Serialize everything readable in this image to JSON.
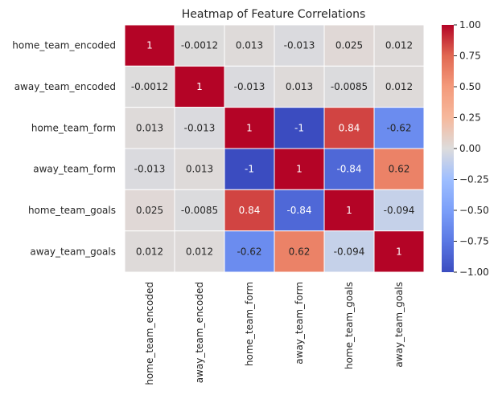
{
  "chart_data": {
    "type": "heatmap",
    "title": "Heatmap of Feature Correlations",
    "row_labels": [
      "home_team_encoded",
      "away_team_encoded",
      "home_team_form",
      "away_team_form",
      "home_team_goals",
      "away_team_goals"
    ],
    "col_labels": [
      "home_team_encoded",
      "away_team_encoded",
      "home_team_form",
      "away_team_form",
      "home_team_goals",
      "away_team_goals"
    ],
    "values": [
      [
        1,
        -0.0012,
        0.013,
        -0.013,
        0.025,
        0.012
      ],
      [
        -0.0012,
        1,
        -0.013,
        0.013,
        -0.0085,
        0.012
      ],
      [
        0.013,
        -0.013,
        1,
        -1,
        0.84,
        -0.62
      ],
      [
        -0.013,
        0.013,
        -1,
        1,
        -0.84,
        0.62
      ],
      [
        0.025,
        -0.0085,
        0.84,
        -0.84,
        1,
        -0.094
      ],
      [
        0.012,
        0.012,
        -0.62,
        0.62,
        -0.094,
        1
      ]
    ],
    "cell_labels": [
      [
        "1",
        "-0.0012",
        "0.013",
        "-0.013",
        "0.025",
        "0.012"
      ],
      [
        "-0.0012",
        "1",
        "-0.013",
        "0.013",
        "-0.0085",
        "0.012"
      ],
      [
        "0.013",
        "-0.013",
        "1",
        "-1",
        "0.84",
        "-0.62"
      ],
      [
        "-0.013",
        "0.013",
        "-1",
        "1",
        "-0.84",
        "0.62"
      ],
      [
        "0.025",
        "-0.0085",
        "0.84",
        "-0.84",
        "1",
        "-0.094"
      ],
      [
        "0.012",
        "0.012",
        "-0.62",
        "0.62",
        "-0.094",
        "1"
      ]
    ],
    "colormap": "coolwarm",
    "vmin": -1,
    "vmax": 1,
    "colorbar_ticks": [
      1.0,
      0.75,
      0.5,
      0.25,
      0.0,
      -0.25,
      -0.5,
      -0.75,
      -1.0
    ],
    "colorbar_tick_labels": [
      "1.00",
      "0.75",
      "0.50",
      "0.25",
      "0.00",
      "−0.25",
      "−0.50",
      "−0.75",
      "−1.00"
    ]
  }
}
